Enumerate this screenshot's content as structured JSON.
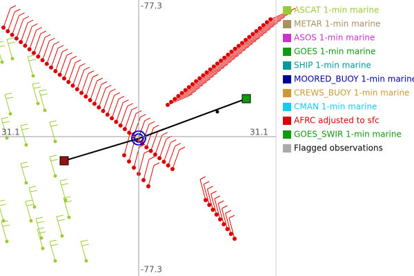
{
  "axes": {
    "top": "-77.3",
    "bottom": "-77.3",
    "left": "31.1",
    "right": "31.1"
  },
  "legend": [
    {
      "label": "ASCAT 1-min marine",
      "color": "#99cc33",
      "text_color": "#99cc33"
    },
    {
      "label": "METAR 1-min marine",
      "color": "#a89060",
      "text_color": "#a89060"
    },
    {
      "label": "ASOS 1-min marine",
      "color": "#cc33cc",
      "text_color": "#cc33cc"
    },
    {
      "label": "GOES 1-min marine",
      "color": "#119911",
      "text_color": "#119911"
    },
    {
      "label": "SHIP 1-min marine",
      "color": "#009999",
      "text_color": "#009999"
    },
    {
      "label": "MOORED_BUOY 1-min marine",
      "color": "#000099",
      "text_color": "#000099"
    },
    {
      "label": "CREWS_BUOY 1-min marine",
      "color": "#cc9933",
      "text_color": "#cc9933"
    },
    {
      "label": "CMAN 1-min marine",
      "color": "#11ccee",
      "text_color": "#11ccee"
    },
    {
      "label": "AFRC adjusted to sfc",
      "color": "#dd0000",
      "text_color": "#dd0000"
    },
    {
      "label": "GOES_SWIR 1-min marine",
      "color": "#119911",
      "text_color": "#119911"
    },
    {
      "label": "Flagged observations",
      "color": "#aaaaaa",
      "text_color": "#000000"
    }
  ]
}
